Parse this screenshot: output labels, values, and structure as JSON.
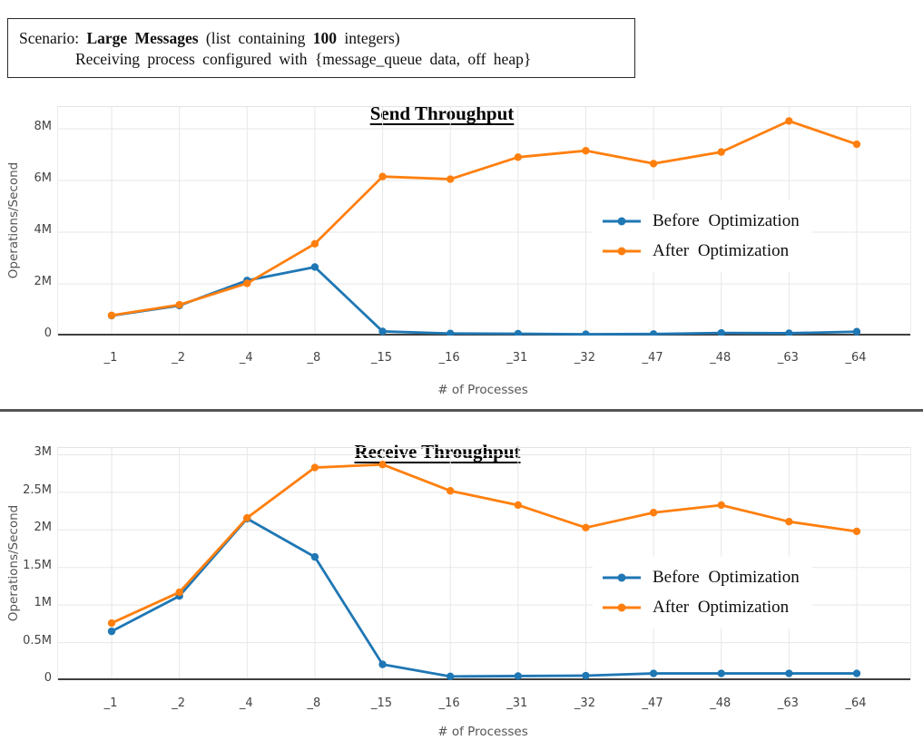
{
  "scenario": {
    "label": "Scenario:",
    "name": "Large Messages",
    "detail_prefix": "(list containing",
    "count": "100",
    "detail_suffix": "integers)",
    "line2": "Receiving process configured with {message_queue data, off heap}"
  },
  "colors": {
    "before_series": "#1f77b4",
    "after_series": "#ff7f0e",
    "gridline": "#e7e7e7",
    "axis_line": "#3f3f3f",
    "tick_text": "#444444",
    "divider": "#555555"
  },
  "chart_data": [
    {
      "type": "line",
      "title": "Send Throughput",
      "xlabel": "# of Processes",
      "ylabel": "Operations/Second",
      "categories": [
        "_1",
        "_2",
        "_4",
        "_8",
        "_15",
        "_16",
        "_31",
        "_32",
        "_47",
        "_48",
        "_63",
        "_64"
      ],
      "series": [
        {
          "name": "Before Optimization",
          "color": "#1f77b4",
          "values": [
            770000,
            1160000,
            2130000,
            2650000,
            160000,
            80000,
            70000,
            50000,
            60000,
            100000,
            90000,
            150000
          ]
        },
        {
          "name": "After Optimization",
          "color": "#ff7f0e",
          "values": [
            780000,
            1190000,
            2020000,
            3550000,
            6150000,
            6050000,
            6900000,
            7150000,
            6650000,
            7100000,
            8300000,
            7400000
          ]
        }
      ],
      "yticks": [
        "0",
        "2M",
        "4M",
        "6M",
        "8M"
      ],
      "ytick_values": [
        0,
        2000000,
        4000000,
        6000000,
        8000000
      ],
      "ylim": [
        0,
        8840000
      ],
      "grid": true,
      "legend_position": "middle-right"
    },
    {
      "type": "line",
      "title": "Receive Throughput",
      "xlabel": "# of Processes",
      "ylabel": "Operations/Second",
      "categories": [
        "_1",
        "_2",
        "_4",
        "_8",
        "_15",
        "_16",
        "_31",
        "_32",
        "_47",
        "_48",
        "_63",
        "_64"
      ],
      "series": [
        {
          "name": "Before Optimization",
          "color": "#1f77b4",
          "values": [
            650000,
            1120000,
            2150000,
            1640000,
            210000,
            50000,
            55000,
            60000,
            90000,
            90000,
            90000,
            90000
          ]
        },
        {
          "name": "After Optimization",
          "color": "#ff7f0e",
          "values": [
            760000,
            1170000,
            2160000,
            2830000,
            2870000,
            2520000,
            2330000,
            2030000,
            2230000,
            2330000,
            2110000,
            1980000
          ]
        }
      ],
      "yticks": [
        "0",
        "0.5M",
        "1M",
        "1.5M",
        "2M",
        "2.5M",
        "3M"
      ],
      "ytick_values": [
        0,
        500000,
        1000000,
        1500000,
        2000000,
        2500000,
        3000000
      ],
      "ylim": [
        0,
        3090000
      ],
      "grid": true,
      "legend_position": "middle-right"
    }
  ]
}
